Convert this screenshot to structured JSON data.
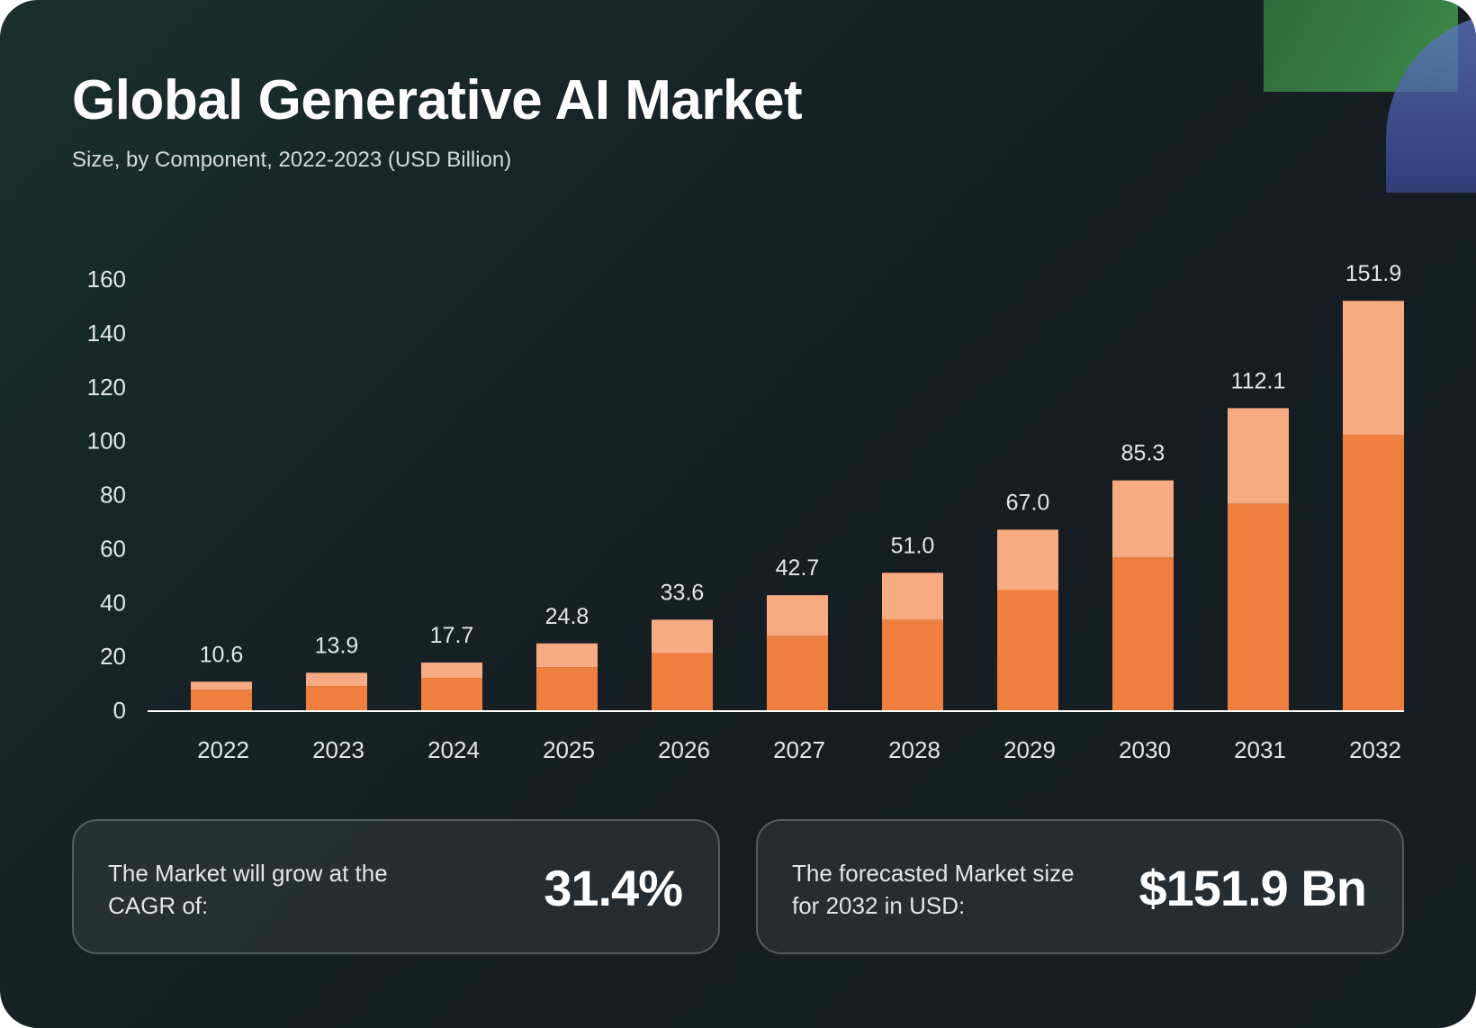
{
  "title": "Global Generative AI Market",
  "subtitle": "Size, by Component, 2022-2023 (USD Billion)",
  "colors": {
    "series_base": "#ee7f3e",
    "series_top": "#f8aa82",
    "text": "#e3e6e8",
    "axis": "#ffffff"
  },
  "chart_data": {
    "type": "bar",
    "stacked": true,
    "categories": [
      "2022",
      "2023",
      "2024",
      "2025",
      "2026",
      "2027",
      "2028",
      "2029",
      "2030",
      "2031",
      "2032"
    ],
    "series": [
      {
        "values": [
          7.6,
          9.0,
          12.0,
          16.0,
          21.2,
          27.6,
          33.6,
          44.6,
          56.7,
          76.6,
          102.2
        ]
      },
      {
        "values": [
          3.0,
          4.9,
          5.7,
          8.8,
          12.4,
          15.1,
          17.4,
          22.4,
          28.6,
          35.5,
          49.7
        ]
      }
    ],
    "totals": [
      "10.6",
      "13.9",
      "17.7",
      "24.8",
      "33.6",
      "42.7",
      "51.0",
      "67.0",
      "85.3",
      "112.1",
      "151.9"
    ],
    "yticks": [
      0,
      20,
      40,
      60,
      80,
      100,
      120,
      140,
      160
    ],
    "ylim": [
      0,
      160
    ],
    "grid": false,
    "xlabel": "",
    "ylabel": ""
  },
  "stats": {
    "cagr_label": "The Market will grow at the CAGR of:",
    "cagr_value": "31.4%",
    "forecast_label": "The forecasted Market size for 2032 in USD:",
    "forecast_value": "$151.9 Bn"
  }
}
